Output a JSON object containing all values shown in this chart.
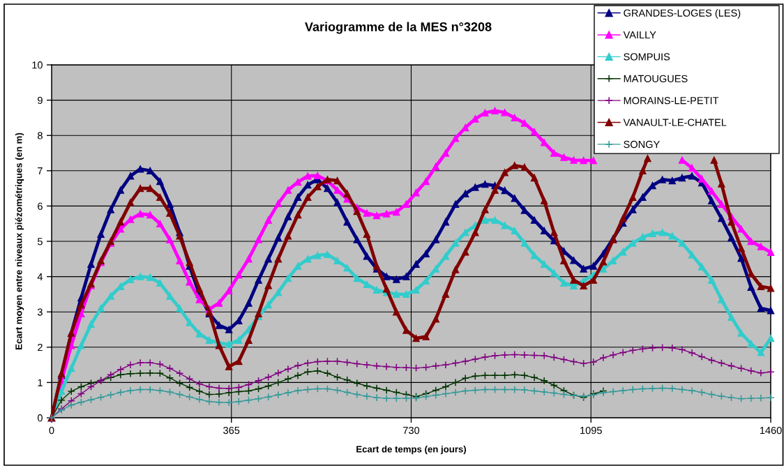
{
  "chart_data": {
    "type": "line",
    "title": "Variogramme de la MES n°3208",
    "xlabel": "Ecart de temps (en jours)",
    "ylabel": "Ecart moyen entre niveaux piézométriques (en m)",
    "x": [
      0,
      20,
      40,
      60,
      80,
      100,
      120,
      140,
      160,
      180,
      200,
      220,
      240,
      260,
      280,
      300,
      320,
      340,
      360,
      380,
      400,
      420,
      440,
      460,
      480,
      500,
      520,
      540,
      560,
      580,
      600,
      620,
      640,
      660,
      680,
      700,
      720,
      740,
      760,
      780,
      800,
      820,
      840,
      860,
      880,
      900,
      920,
      940,
      960,
      980,
      1000,
      1020,
      1040,
      1060,
      1080,
      1100,
      1120,
      1140,
      1160,
      1180,
      1200,
      1220,
      1240,
      1260,
      1280,
      1300,
      1320,
      1340,
      1360,
      1380,
      1400,
      1420,
      1440,
      1460
    ],
    "series": [
      {
        "name": "GRANDES-LOGES (LES)",
        "color": "#000080",
        "marker": "triangle",
        "values": [
          0,
          1.2,
          2.4,
          3.4,
          4.35,
          5.2,
          5.9,
          6.45,
          6.85,
          7.05,
          7.0,
          6.7,
          6.05,
          5.25,
          4.3,
          3.5,
          2.95,
          2.62,
          2.5,
          2.75,
          3.25,
          3.9,
          4.5,
          5.1,
          5.7,
          6.25,
          6.6,
          6.75,
          6.5,
          6.1,
          5.55,
          5.05,
          4.58,
          4.22,
          4.0,
          3.92,
          4.0,
          4.35,
          4.65,
          5.05,
          5.55,
          6.05,
          6.35,
          6.53,
          6.62,
          6.58,
          6.44,
          6.22,
          5.88,
          5.6,
          5.3,
          5.02,
          4.72,
          4.46,
          4.22,
          4.3,
          4.65,
          5.08,
          5.52,
          5.9,
          6.25,
          6.58,
          6.75,
          6.72,
          6.8,
          6.85,
          6.66,
          6.15,
          5.65,
          5.1,
          4.52,
          3.7,
          3.1,
          3.04
        ]
      },
      {
        "name": "VAILLY",
        "color": "#ff00ff",
        "marker": "triangle",
        "values": [
          0,
          1.05,
          2.05,
          2.95,
          3.75,
          4.4,
          4.95,
          5.35,
          5.62,
          5.78,
          5.75,
          5.5,
          5.05,
          4.45,
          3.85,
          3.35,
          3.08,
          3.25,
          3.6,
          4.05,
          4.5,
          5.05,
          5.6,
          6.07,
          6.45,
          6.68,
          6.85,
          6.86,
          6.72,
          6.45,
          6.2,
          5.95,
          5.8,
          5.73,
          5.78,
          5.83,
          6.05,
          6.38,
          6.7,
          7.12,
          7.5,
          7.92,
          8.22,
          8.47,
          8.64,
          8.7,
          8.65,
          8.5,
          8.35,
          8.1,
          7.8,
          7.5,
          7.38,
          7.3,
          7.29,
          7.29,
          null,
          null,
          null,
          null,
          null,
          null,
          null,
          null,
          7.3,
          7.08,
          6.77,
          6.42,
          6.05,
          5.7,
          5.35,
          5.0,
          4.85,
          4.69
        ]
      },
      {
        "name": "SOMPUIS",
        "color": "#33cccc",
        "marker": "triangle",
        "values": [
          0,
          0.75,
          1.4,
          2.05,
          2.65,
          3.1,
          3.45,
          3.72,
          3.92,
          4.0,
          3.98,
          3.82,
          3.45,
          3.1,
          2.7,
          2.38,
          2.2,
          2.12,
          2.08,
          2.2,
          2.5,
          2.87,
          3.2,
          3.55,
          3.95,
          4.3,
          4.5,
          4.6,
          4.63,
          4.45,
          4.25,
          3.95,
          3.78,
          3.62,
          3.55,
          3.5,
          3.5,
          3.62,
          3.88,
          4.22,
          4.58,
          4.95,
          5.25,
          5.45,
          5.6,
          5.6,
          5.45,
          5.3,
          4.95,
          4.6,
          4.35,
          4.1,
          3.82,
          3.74,
          3.88,
          4.05,
          4.22,
          4.45,
          4.7,
          4.95,
          5.12,
          5.22,
          5.25,
          5.15,
          4.95,
          4.62,
          4.28,
          3.9,
          3.35,
          2.85,
          2.4,
          2.1,
          1.85,
          2.25
        ]
      },
      {
        "name": "MATOUGUES",
        "color": "#003300",
        "marker": "cross",
        "values": [
          0,
          0.5,
          0.75,
          0.88,
          0.98,
          1.06,
          1.14,
          1.22,
          1.25,
          1.26,
          1.27,
          1.26,
          1.13,
          0.98,
          0.86,
          0.75,
          0.66,
          0.67,
          0.71,
          0.74,
          0.76,
          0.82,
          0.9,
          1.0,
          1.1,
          1.2,
          1.3,
          1.33,
          1.26,
          1.15,
          1.07,
          0.98,
          0.9,
          0.84,
          0.78,
          0.72,
          0.66,
          0.6,
          0.68,
          0.78,
          0.88,
          1.0,
          1.12,
          1.18,
          1.2,
          1.2,
          1.2,
          1.22,
          1.2,
          1.14,
          1.05,
          0.92,
          0.77,
          0.64,
          0.58,
          0.68,
          0.76,
          null,
          null,
          null,
          null,
          null,
          null,
          null,
          null,
          null,
          null,
          null,
          null,
          null,
          null,
          null,
          null,
          null
        ]
      },
      {
        "name": "MORAINS-LE-PETIT",
        "color": "#800080",
        "marker": "cross",
        "values": [
          0,
          0.25,
          0.48,
          0.68,
          0.88,
          1.05,
          1.22,
          1.37,
          1.5,
          1.56,
          1.56,
          1.52,
          1.4,
          1.26,
          1.1,
          0.96,
          0.88,
          0.84,
          0.83,
          0.86,
          0.94,
          1.05,
          1.15,
          1.27,
          1.38,
          1.48,
          1.55,
          1.59,
          1.6,
          1.6,
          1.57,
          1.53,
          1.5,
          1.47,
          1.45,
          1.43,
          1.42,
          1.41,
          1.43,
          1.47,
          1.5,
          1.55,
          1.6,
          1.66,
          1.72,
          1.76,
          1.78,
          1.79,
          1.78,
          1.77,
          1.76,
          1.71,
          1.65,
          1.59,
          1.54,
          1.58,
          1.7,
          1.78,
          1.85,
          1.91,
          1.95,
          1.98,
          1.99,
          1.98,
          1.93,
          1.84,
          1.73,
          1.63,
          1.55,
          1.47,
          1.4,
          1.33,
          1.27,
          1.3
        ]
      },
      {
        "name": "VANAULT-LE-CHATEL",
        "color": "#800000",
        "marker": "triangle",
        "x": [
          0,
          20,
          40,
          60,
          80,
          100,
          120,
          140,
          160,
          180,
          200,
          220,
          240,
          260,
          280,
          300,
          320,
          340,
          360,
          380,
          400,
          420,
          440,
          460,
          480,
          500,
          520,
          540,
          560,
          580,
          600,
          620,
          640,
          660,
          680,
          700,
          720,
          740,
          760,
          780,
          800,
          820,
          840,
          860,
          880,
          900,
          920,
          940,
          960,
          980,
          1000,
          1020,
          1040,
          1060,
          1080,
          1100,
          1120,
          1140,
          1160,
          1180,
          1200,
          1210,
          1220,
          1240,
          1260,
          1280,
          1300,
          1320,
          1340,
          1345,
          1360,
          1380,
          1400,
          1420,
          1440,
          1460
        ],
        "values": [
          0,
          1.25,
          2.4,
          3.2,
          3.8,
          4.45,
          5.0,
          5.55,
          6.1,
          6.5,
          6.5,
          6.25,
          5.8,
          5.15,
          4.4,
          3.65,
          3.0,
          2.05,
          1.45,
          1.6,
          2.2,
          2.95,
          3.75,
          4.5,
          5.15,
          5.75,
          6.25,
          6.55,
          6.75,
          6.72,
          6.35,
          5.85,
          5.2,
          4.3,
          3.65,
          3.0,
          2.48,
          2.25,
          2.3,
          2.8,
          3.5,
          4.2,
          4.7,
          5.25,
          5.9,
          6.45,
          6.95,
          7.15,
          7.1,
          6.8,
          6.15,
          5.25,
          4.45,
          3.9,
          3.74,
          3.9,
          4.42,
          5.05,
          5.65,
          6.25,
          7.0,
          7.35,
          null,
          null,
          null,
          null,
          null,
          null,
          null,
          7.3,
          6.63,
          5.55,
          4.8,
          4.08,
          3.72,
          3.67
        ]
      },
      {
        "name": "SONGY",
        "color": "#339999",
        "marker": "cross",
        "values": [
          0,
          0.22,
          0.36,
          0.44,
          0.51,
          0.58,
          0.65,
          0.72,
          0.77,
          0.8,
          0.8,
          0.77,
          0.73,
          0.66,
          0.59,
          0.52,
          0.46,
          0.44,
          0.43,
          0.46,
          0.5,
          0.54,
          0.59,
          0.65,
          0.71,
          0.77,
          0.8,
          0.82,
          0.82,
          0.78,
          0.72,
          0.66,
          0.61,
          0.57,
          0.55,
          0.55,
          0.55,
          0.56,
          0.6,
          0.64,
          0.68,
          0.72,
          0.76,
          0.78,
          0.8,
          0.8,
          0.8,
          0.8,
          0.79,
          0.76,
          0.73,
          0.7,
          0.66,
          0.63,
          0.61,
          0.65,
          0.71,
          0.74,
          0.77,
          0.8,
          0.82,
          0.83,
          0.84,
          0.83,
          0.8,
          0.77,
          0.72,
          0.66,
          0.61,
          0.57,
          0.54,
          0.55,
          0.56,
          0.57
        ]
      }
    ],
    "xlim": [
      0,
      1460
    ],
    "xticks": [
      0,
      365,
      730,
      1095,
      1460
    ],
    "ylim": [
      0,
      10
    ],
    "yticks": [
      0,
      1,
      2,
      3,
      4,
      5,
      6,
      7,
      8,
      9,
      10
    ],
    "grid": true,
    "legend": "top right"
  }
}
